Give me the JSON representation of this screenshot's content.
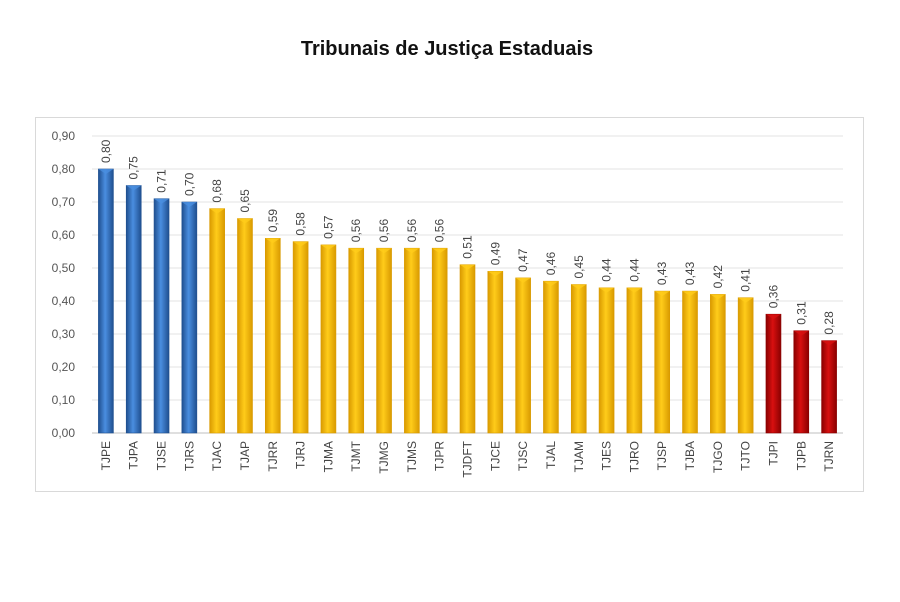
{
  "chart_data": {
    "type": "bar",
    "title": "Tribunais de Justiça Estaduais",
    "xlabel": "",
    "ylabel": "",
    "ylim": [
      0,
      0.9
    ],
    "yticks": [
      "0,00",
      "0,10",
      "0,20",
      "0,30",
      "0,40",
      "0,50",
      "0,60",
      "0,70",
      "0,80",
      "0,90"
    ],
    "grid": true,
    "categories": [
      "TJPE",
      "TJPA",
      "TJSE",
      "TJRS",
      "TJAC",
      "TJAP",
      "TJRR",
      "TJRJ",
      "TJMA",
      "TJMT",
      "TJMG",
      "TJMS",
      "TJPR",
      "TJDFT",
      "TJCE",
      "TJSC",
      "TJAL",
      "TJAM",
      "TJES",
      "TJRO",
      "TJSP",
      "TJBA",
      "TJGO",
      "TJTO",
      "TJPI",
      "TJPB",
      "TJRN"
    ],
    "values": [
      0.8,
      0.75,
      0.71,
      0.7,
      0.68,
      0.65,
      0.59,
      0.58,
      0.57,
      0.56,
      0.56,
      0.56,
      0.56,
      0.51,
      0.49,
      0.47,
      0.46,
      0.45,
      0.44,
      0.44,
      0.43,
      0.43,
      0.42,
      0.41,
      0.36,
      0.31,
      0.28
    ],
    "data_labels": [
      "0,80",
      "0,75",
      "0,71",
      "0,70",
      "0,68",
      "0,65",
      "0,59",
      "0,58",
      "0,57",
      "0,56",
      "0,56",
      "0,56",
      "0,56",
      "0,51",
      "0,49",
      "0,47",
      "0,46",
      "0,45",
      "0,44",
      "0,44",
      "0,43",
      "0,43",
      "0,42",
      "0,41",
      "0,36",
      "0,31",
      "0,28"
    ],
    "groups": [
      "blue",
      "blue",
      "blue",
      "blue",
      "yellow",
      "yellow",
      "yellow",
      "yellow",
      "yellow",
      "yellow",
      "yellow",
      "yellow",
      "yellow",
      "yellow",
      "yellow",
      "yellow",
      "yellow",
      "yellow",
      "yellow",
      "yellow",
      "yellow",
      "yellow",
      "yellow",
      "yellow",
      "red",
      "red",
      "red"
    ],
    "colors": {
      "blue": "#3a78c4",
      "yellow": "#ffc000",
      "red": "#c00000"
    }
  }
}
